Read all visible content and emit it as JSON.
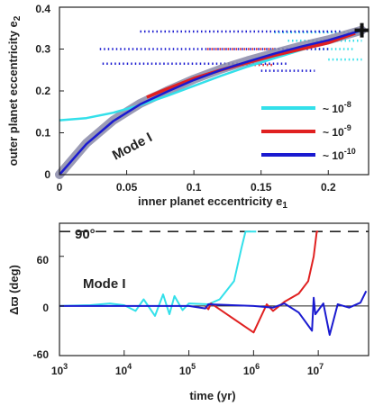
{
  "chart_data": [
    {
      "type": "line",
      "xlabel": "inner planet eccentricity e",
      "xlabel_sub": "1",
      "ylabel": "outer planet eccentricity e",
      "ylabel_sub": "2",
      "xlim": [
        0,
        0.23
      ],
      "ylim": [
        0,
        0.4
      ],
      "xticks": [
        "0",
        "0.05",
        "0.1",
        "0.15",
        "0.2"
      ],
      "xtick_values": [
        0,
        0.05,
        0.1,
        0.15,
        0.2
      ],
      "yticks": [
        "0",
        "0.1",
        "0.2",
        "0.3",
        "0.4"
      ],
      "ytick_values": [
        0,
        0.1,
        0.2,
        0.3,
        0.4
      ],
      "annotation": "Mode I",
      "legend": {
        "placement": "center-right",
        "entries": [
          {
            "prefix": "~ 10",
            "exp": "-8",
            "color": "#33e0ea"
          },
          {
            "prefix": "~ 10",
            "exp": "-9",
            "color": "#e02020"
          },
          {
            "prefix": "~ 10",
            "exp": "-10",
            "color": "#1a1ad0"
          }
        ]
      },
      "mode_curve": {
        "color": "#8a8aa8",
        "x": [
          0,
          0.02,
          0.04,
          0.06,
          0.08,
          0.1,
          0.12,
          0.14,
          0.16,
          0.18,
          0.2,
          0.225
        ],
        "y": [
          0,
          0.075,
          0.13,
          0.17,
          0.2,
          0.228,
          0.252,
          0.272,
          0.29,
          0.307,
          0.322,
          0.345
        ]
      },
      "series": [
        {
          "color": "#33e0ea",
          "x": [
            0,
            0.02,
            0.04,
            0.06,
            0.08,
            0.1,
            0.12,
            0.14,
            0.16,
            0.18,
            0.2,
            0.225
          ],
          "y": [
            0.13,
            0.135,
            0.148,
            0.166,
            0.188,
            0.212,
            0.236,
            0.258,
            0.278,
            0.298,
            0.318,
            0.345
          ]
        },
        {
          "color": "#e02020",
          "x": [
            0.065,
            0.08,
            0.1,
            0.12,
            0.14,
            0.16,
            0.18,
            0.2,
            0.22
          ],
          "y": [
            0.185,
            0.205,
            0.23,
            0.25,
            0.268,
            0.285,
            0.3,
            0.315,
            0.338
          ]
        },
        {
          "color": "#1a1ad0",
          "x": [
            0,
            0.02,
            0.04,
            0.06,
            0.08,
            0.1,
            0.12,
            0.14,
            0.16,
            0.18,
            0.2,
            0.225
          ],
          "y": [
            0,
            0.073,
            0.128,
            0.168,
            0.198,
            0.226,
            0.25,
            0.27,
            0.289,
            0.306,
            0.321,
            0.345
          ]
        }
      ],
      "scatter": [
        {
          "color": "#33e0ea",
          "y": 0.34,
          "x0": 0.16,
          "x1": 0.225
        },
        {
          "color": "#33e0ea",
          "y": 0.32,
          "x0": 0.17,
          "x1": 0.225
        },
        {
          "color": "#33e0ea",
          "y": 0.3,
          "x0": 0.19,
          "x1": 0.22
        },
        {
          "color": "#33e0ea",
          "y": 0.275,
          "x0": 0.2,
          "x1": 0.225
        },
        {
          "color": "#1a1ad0",
          "y": 0.342,
          "x0": 0.06,
          "x1": 0.21
        },
        {
          "color": "#1a1ad0",
          "y": 0.3,
          "x0": 0.03,
          "x1": 0.2
        },
        {
          "color": "#1a1ad0",
          "y": 0.265,
          "x0": 0.032,
          "x1": 0.17
        },
        {
          "color": "#1a1ad0",
          "y": 0.248,
          "x0": 0.15,
          "x1": 0.19
        },
        {
          "color": "#e02020",
          "y": 0.3,
          "x0": 0.11,
          "x1": 0.16
        },
        {
          "color": "#e02020",
          "y": 0.262,
          "x0": 0.13,
          "x1": 0.16
        }
      ],
      "marker": {
        "symbol": "+",
        "x": 0.225,
        "y": 0.345
      }
    },
    {
      "type": "line",
      "xscale": "log",
      "xlabel": "time (yr)",
      "ylabel": "Δϖ (deg)",
      "xlim": [
        1000,
        60000000
      ],
      "ylim": [
        -60,
        100
      ],
      "xticks": [
        {
          "base": "10",
          "exp": "3",
          "value": 1000
        },
        {
          "base": "10",
          "exp": "4",
          "value": 10000
        },
        {
          "base": "10",
          "exp": "5",
          "value": 100000
        },
        {
          "base": "10",
          "exp": "6",
          "value": 1000000
        },
        {
          "base": "10",
          "exp": "7",
          "value": 10000000
        }
      ],
      "yticks": [
        "-60",
        "0",
        "60"
      ],
      "ytick_values": [
        -60,
        0,
        60
      ],
      "hline": {
        "value": 90,
        "label": "90°",
        "style": "dashed"
      },
      "annotation": "Mode I",
      "series": [
        {
          "color": "#33e0ea",
          "x": [
            1000,
            3000,
            6000,
            10000,
            15000,
            20000,
            30000,
            40000,
            50000,
            60000,
            80000,
            100000,
            200000,
            300000,
            500000,
            650000,
            750000,
            900000,
            1100000
          ],
          "y": [
            0,
            1,
            3,
            1,
            -6,
            8,
            -12,
            14,
            -10,
            12,
            -5,
            3,
            2,
            8,
            30,
            70,
            90,
            90,
            90
          ]
        },
        {
          "color": "#e02020",
          "x": [
            180000,
            200000,
            220000,
            1000000,
            1600000,
            2000000,
            3000000,
            5000000,
            7000000,
            8500000,
            9500000,
            10000000
          ],
          "y": [
            0,
            -4,
            3,
            -32,
            2,
            -6,
            5,
            15,
            30,
            60,
            90,
            90
          ]
        },
        {
          "color": "#1a1ad0",
          "x": [
            1000,
            100000,
            180000,
            200000,
            1000000,
            2000000,
            3000000,
            5000000,
            8000000,
            8500000,
            9000000,
            12000000,
            15000000,
            20000000,
            30000000,
            45000000,
            55000000
          ],
          "y": [
            0,
            0,
            -3,
            2,
            0,
            -2,
            3,
            -8,
            -30,
            10,
            -10,
            3,
            -35,
            2,
            -2,
            4,
            18
          ]
        }
      ]
    }
  ]
}
